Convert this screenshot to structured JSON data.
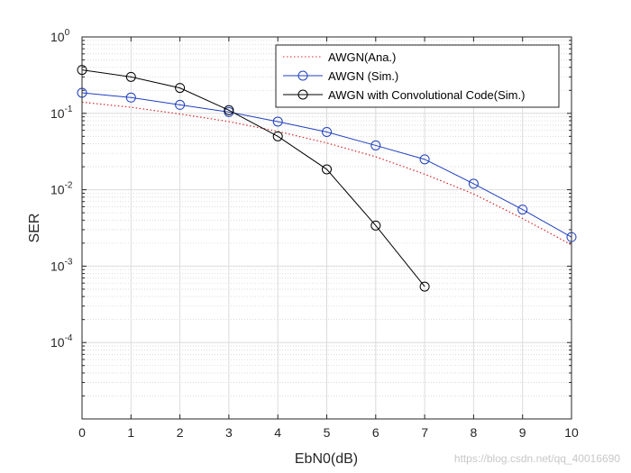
{
  "chart_data": {
    "type": "line",
    "xlabel": "EbN0(dB)",
    "ylabel": "SER",
    "xlim": [
      0,
      10
    ],
    "ylim": [
      1e-05,
      1
    ],
    "yscale": "log",
    "xticks": [
      0,
      1,
      2,
      3,
      4,
      5,
      6,
      7,
      8,
      9,
      10
    ],
    "yticks": [
      0.0001,
      0.001,
      0.01,
      0.1,
      1
    ],
    "ytick_labels": [
      {
        "base": "10",
        "exp": "-4"
      },
      {
        "base": "10",
        "exp": "-3"
      },
      {
        "base": "10",
        "exp": "-2"
      },
      {
        "base": "10",
        "exp": "-1"
      },
      {
        "base": "10",
        "exp": "0"
      }
    ],
    "grid": true,
    "minor_grid": true,
    "legend_position": "top-right",
    "series": [
      {
        "name": "AWGN(Ana.)",
        "color": "#d62728",
        "line_style": "dotted",
        "marker": "none",
        "x": [
          0,
          1,
          2,
          3,
          4,
          5,
          6,
          7,
          8,
          9,
          10
        ],
        "y": [
          0.14,
          0.12,
          0.098,
          0.078,
          0.058,
          0.041,
          0.027,
          0.016,
          0.0088,
          0.0042,
          0.0019
        ]
      },
      {
        "name": "AWGN (Sim.)",
        "color": "#1f3fbf",
        "line_style": "solid",
        "marker": "circle",
        "x": [
          0,
          1,
          2,
          3,
          4,
          5,
          6,
          7,
          8,
          9,
          10
        ],
        "y": [
          0.186,
          0.161,
          0.129,
          0.104,
          0.078,
          0.057,
          0.038,
          0.025,
          0.012,
          0.0055,
          0.0024
        ]
      },
      {
        "name": "AWGN with Convolutional Code(Sim.)",
        "color": "#000000",
        "line_style": "solid",
        "marker": "circle",
        "x": [
          0,
          1,
          2,
          3,
          4,
          5,
          6,
          7
        ],
        "y": [
          0.37,
          0.3,
          0.215,
          0.11,
          0.05,
          0.0185,
          0.0034,
          0.00054
        ]
      }
    ]
  },
  "watermark": "https://blog.csdn.net/qq_40016690"
}
